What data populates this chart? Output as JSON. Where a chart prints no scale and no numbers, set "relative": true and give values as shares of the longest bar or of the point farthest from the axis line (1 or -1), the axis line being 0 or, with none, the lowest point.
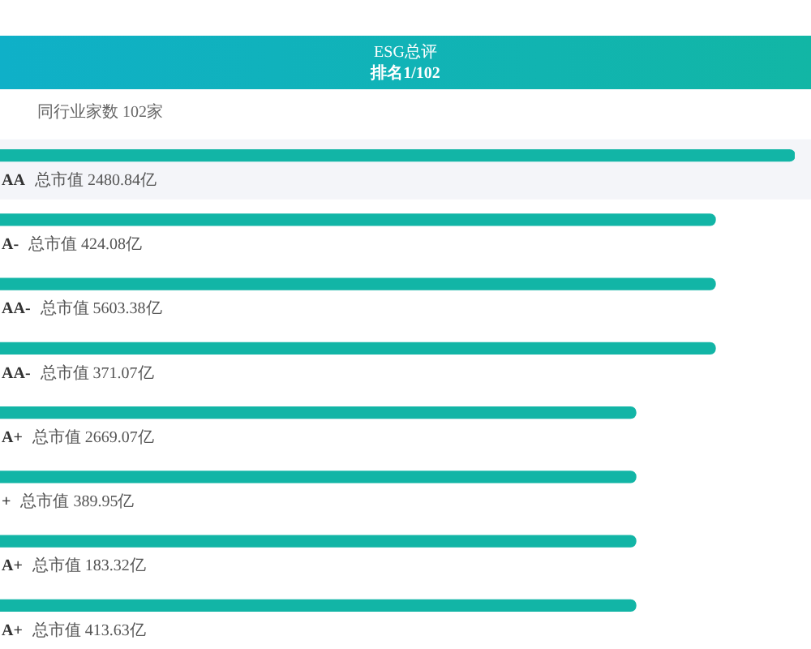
{
  "chart_data": {
    "type": "bar",
    "orientation": "horizontal",
    "relative": true,
    "title": "ESG总评",
    "subtitle": "排名1/102",
    "categories": [
      "AA",
      "A-",
      "AA-",
      "AA-",
      "A+",
      "+",
      "A+",
      "A+"
    ],
    "values": [
      1,
      0.9,
      0.9,
      0.9,
      0.8,
      0.8,
      0.8,
      0.8
    ],
    "color": "#12b5a6",
    "tick_labels": "y",
    "bands": [
      {
        "axis": "y",
        "from": "AA",
        "to": "AA",
        "color": "#f4f5f9"
      }
    ],
    "annotations": [
      "同行业家数 102家",
      "总市值 2480.84亿",
      "总市值 424.08亿",
      "总市值 5603.38亿",
      "总市值 371.07亿",
      "总市值 2669.07亿",
      "总市值 389.95亿",
      "总市值 183.32亿",
      "总市值 413.63亿"
    ]
  }
}
